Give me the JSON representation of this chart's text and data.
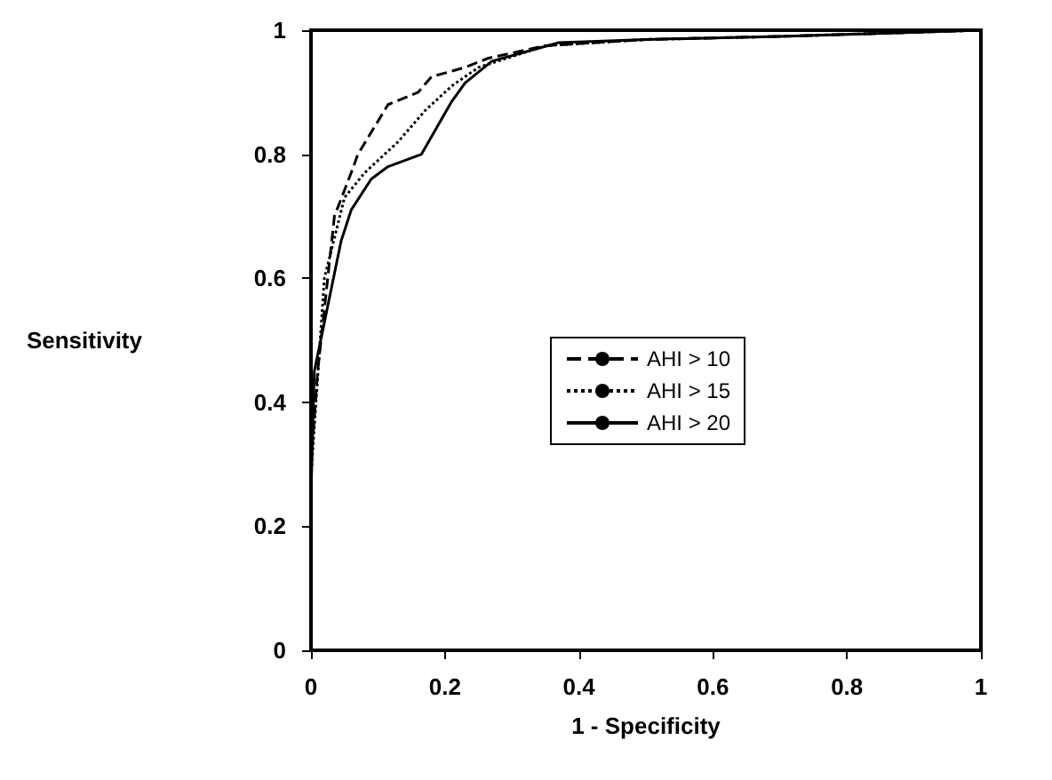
{
  "chart_data": {
    "type": "line",
    "xlabel": "1 - Specificity",
    "ylabel": "Sensitivity",
    "xlim": [
      0,
      1
    ],
    "ylim": [
      0,
      1
    ],
    "xticks": [
      0,
      0.2,
      0.4,
      0.6,
      0.8,
      1
    ],
    "yticks": [
      0,
      0.2,
      0.4,
      0.6,
      0.8,
      1
    ],
    "grid": false,
    "legend": "right",
    "marker": "none",
    "series": [
      {
        "name": "AHI > 10",
        "color": "#000000",
        "line_style": "dashed",
        "x": [
          0,
          0.01,
          0.035,
          0.06,
          0.07,
          0.115,
          0.16,
          0.18,
          0.23,
          0.265,
          0.35,
          0.5,
          0.7,
          1
        ],
        "values": [
          0.3,
          0.45,
          0.7,
          0.77,
          0.8,
          0.88,
          0.9,
          0.925,
          0.94,
          0.955,
          0.975,
          0.985,
          0.99,
          1
        ]
      },
      {
        "name": "AHI > 15",
        "color": "#000000",
        "line_style": "dotted",
        "x": [
          0,
          0.02,
          0.05,
          0.08,
          0.13,
          0.17,
          0.21,
          0.25,
          0.35,
          0.5,
          0.7,
          1
        ],
        "values": [
          0.28,
          0.6,
          0.73,
          0.77,
          0.82,
          0.87,
          0.91,
          0.94,
          0.975,
          0.985,
          0.99,
          1
        ]
      },
      {
        "name": "AHI > 20",
        "color": "#000000",
        "line_style": "solid",
        "x": [
          0,
          0.005,
          0.045,
          0.06,
          0.09,
          0.115,
          0.165,
          0.21,
          0.23,
          0.27,
          0.37,
          0.5,
          0.7,
          1
        ],
        "values": [
          0.25,
          0.45,
          0.66,
          0.71,
          0.76,
          0.78,
          0.8,
          0.885,
          0.915,
          0.95,
          0.98,
          0.985,
          0.99,
          1
        ]
      }
    ]
  }
}
